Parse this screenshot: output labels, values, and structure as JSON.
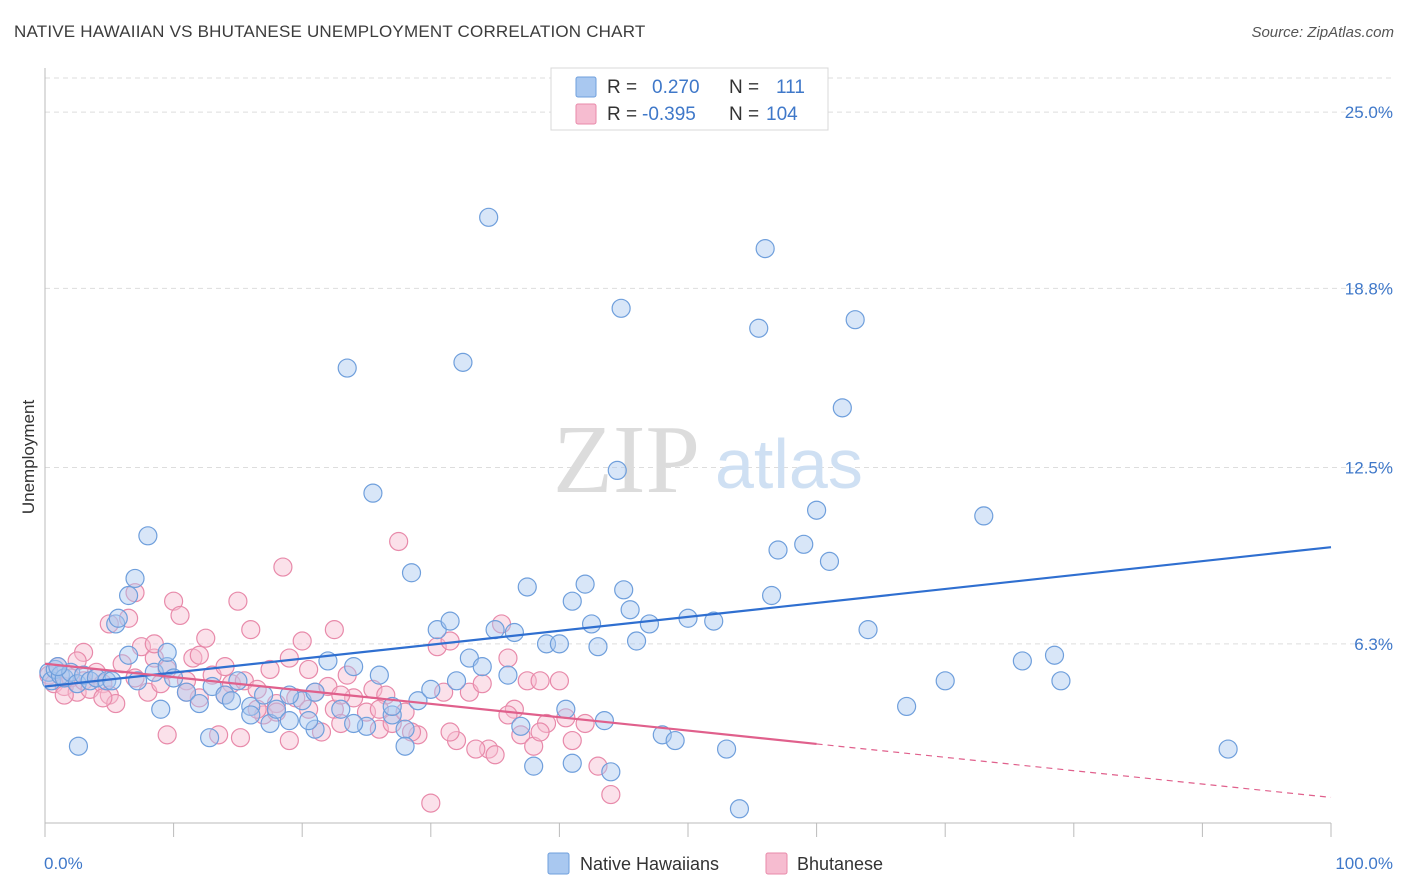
{
  "title": "NATIVE HAWAIIAN VS BHUTANESE UNEMPLOYMENT CORRELATION CHART",
  "source": "Source: ZipAtlas.com",
  "watermark": {
    "zip": "ZIP",
    "atlas": "atlas"
  },
  "colors": {
    "blue_fill": "#a9c8f0",
    "blue_stroke": "#6f9fdc",
    "blue_line": "#2f6fd0",
    "pink_fill": "#f6bcd0",
    "pink_stroke": "#e88aaa",
    "pink_line": "#e0608c",
    "tick_text": "#3f78c9",
    "grid": "#dddddd"
  },
  "legend": {
    "rows": [
      {
        "r_label": "R =",
        "r_value": "0.270",
        "n_label": "N =",
        "n_value": "111"
      },
      {
        "r_label": "R =",
        "r_value": "-0.395",
        "n_label": "N =",
        "n_value": "104"
      }
    ]
  },
  "bottom_legend": [
    "Native Hawaiians",
    "Bhutanese"
  ],
  "chart_data": {
    "type": "scatter",
    "title": "NATIVE HAWAIIAN VS BHUTANESE UNEMPLOYMENT CORRELATION CHART",
    "xlabel": "",
    "ylabel": "Unemployment",
    "xlim": [
      0,
      100
    ],
    "ylim": [
      0,
      26.2
    ],
    "x_tick_labels": [
      "0.0%",
      "100.0%"
    ],
    "y_ticks": [
      6.3,
      12.5,
      18.8,
      25.0
    ],
    "y_tick_labels": [
      "6.3%",
      "12.5%",
      "18.8%",
      "25.0%"
    ],
    "grid": true,
    "legend_position": "top-center",
    "series": [
      {
        "name": "Native Hawaiians",
        "r": 0.27,
        "n": 111,
        "trend": {
          "x": [
            0,
            100
          ],
          "y": [
            4.8,
            9.7
          ],
          "dashed_from": null
        },
        "points": [
          [
            0.3,
            5.3
          ],
          [
            0.5,
            5.0
          ],
          [
            0.8,
            5.4
          ],
          [
            1.2,
            5.2
          ],
          [
            1.5,
            5.1
          ],
          [
            2,
            5.3
          ],
          [
            2.5,
            4.9
          ],
          [
            3,
            5.2
          ],
          [
            3.5,
            5.0
          ],
          [
            4,
            5.1
          ],
          [
            4.8,
            5.0
          ],
          [
            5.5,
            7.0
          ],
          [
            6.5,
            5.9
          ],
          [
            5.2,
            5.0
          ],
          [
            7.2,
            5.0
          ],
          [
            8.5,
            5.3
          ],
          [
            9.5,
            5.5
          ],
          [
            10,
            5.1
          ],
          [
            11,
            4.6
          ],
          [
            12,
            4.2
          ],
          [
            13,
            4.8
          ],
          [
            14,
            4.5
          ],
          [
            15,
            5.0
          ],
          [
            16,
            4.1
          ],
          [
            17,
            4.5
          ],
          [
            17.5,
            3.5
          ],
          [
            18,
            4.0
          ],
          [
            19,
            3.6
          ],
          [
            20,
            4.3
          ],
          [
            21,
            4.6
          ],
          [
            22,
            5.7
          ],
          [
            23,
            4.0
          ],
          [
            24,
            5.5
          ],
          [
            25,
            3.4
          ],
          [
            26,
            5.2
          ],
          [
            27,
            3.8
          ],
          [
            28,
            3.3
          ],
          [
            29,
            4.3
          ],
          [
            30,
            4.7
          ],
          [
            8,
            10.1
          ],
          [
            7,
            8.6
          ],
          [
            5.7,
            7.2
          ],
          [
            6.5,
            8.0
          ],
          [
            2.6,
            2.7
          ],
          [
            9,
            4.0
          ],
          [
            12.8,
            3.0
          ],
          [
            16,
            3.8
          ],
          [
            19,
            4.5
          ],
          [
            21,
            3.3
          ],
          [
            23.5,
            16.0
          ],
          [
            24,
            3.5
          ],
          [
            25.5,
            11.6
          ],
          [
            27,
            4.1
          ],
          [
            28,
            2.7
          ],
          [
            28.5,
            8.8
          ],
          [
            30.5,
            6.8
          ],
          [
            31.5,
            7.1
          ],
          [
            32,
            5.0
          ],
          [
            32.5,
            16.2
          ],
          [
            33,
            5.8
          ],
          [
            34,
            5.5
          ],
          [
            34.5,
            21.3
          ],
          [
            35,
            6.8
          ],
          [
            36,
            5.2
          ],
          [
            37,
            3.4
          ],
          [
            37.5,
            8.3
          ],
          [
            38,
            2.0
          ],
          [
            39,
            6.3
          ],
          [
            40,
            6.3
          ],
          [
            40.5,
            4.0
          ],
          [
            41,
            2.1
          ],
          [
            42,
            8.4
          ],
          [
            42.5,
            7.0
          ],
          [
            43,
            6.2
          ],
          [
            43.5,
            3.6
          ],
          [
            44,
            1.8
          ],
          [
            44.5,
            12.4
          ],
          [
            44.8,
            18.1
          ],
          [
            45,
            8.2
          ],
          [
            45.5,
            7.5
          ],
          [
            46,
            6.4
          ],
          [
            47,
            7.0
          ],
          [
            48,
            3.1
          ],
          [
            49,
            2.9
          ],
          [
            50,
            7.2
          ],
          [
            52,
            7.1
          ],
          [
            53,
            2.6
          ],
          [
            54,
            0.5
          ],
          [
            55.5,
            17.4
          ],
          [
            56,
            20.2
          ],
          [
            56.5,
            8.0
          ],
          [
            57,
            9.6
          ],
          [
            59,
            9.8
          ],
          [
            60,
            11.0
          ],
          [
            61,
            9.2
          ],
          [
            62,
            14.6
          ],
          [
            63,
            17.7
          ],
          [
            64,
            6.8
          ],
          [
            67,
            4.1
          ],
          [
            70,
            5.0
          ],
          [
            73,
            10.8
          ],
          [
            76,
            5.7
          ],
          [
            78.5,
            5.9
          ],
          [
            79,
            5.0
          ],
          [
            92,
            2.6
          ],
          [
            41,
            7.8
          ],
          [
            36.5,
            6.7
          ],
          [
            20.5,
            3.6
          ],
          [
            14.5,
            4.3
          ],
          [
            9.5,
            6.0
          ],
          [
            1,
            5.5
          ]
        ]
      },
      {
        "name": "Bhutanese",
        "r": -0.395,
        "n": 104,
        "trend": {
          "x": [
            0,
            100
          ],
          "y": [
            5.6,
            0.9
          ],
          "dashed_from": 60
        },
        "points": [
          [
            0.3,
            5.2
          ],
          [
            0.7,
            4.9
          ],
          [
            1,
            5.5
          ],
          [
            1.5,
            4.8
          ],
          [
            2,
            5.1
          ],
          [
            2.5,
            4.6
          ],
          [
            3,
            5.0
          ],
          [
            3.5,
            4.7
          ],
          [
            4,
            5.3
          ],
          [
            4.5,
            4.9
          ],
          [
            5,
            4.5
          ],
          [
            5.5,
            4.2
          ],
          [
            6,
            5.6
          ],
          [
            6.5,
            7.2
          ],
          [
            7,
            5.1
          ],
          [
            7.5,
            6.2
          ],
          [
            8,
            4.6
          ],
          [
            8.5,
            5.8
          ],
          [
            9,
            4.9
          ],
          [
            9.5,
            5.4
          ],
          [
            10,
            7.8
          ],
          [
            10.5,
            7.3
          ],
          [
            11,
            5.0
          ],
          [
            11.5,
            5.8
          ],
          [
            12,
            4.4
          ],
          [
            12.5,
            6.5
          ],
          [
            13,
            5.2
          ],
          [
            13.5,
            3.1
          ],
          [
            14,
            5.5
          ],
          [
            14.5,
            4.9
          ],
          [
            15,
            7.8
          ],
          [
            15.5,
            5.0
          ],
          [
            16,
            6.8
          ],
          [
            16.5,
            4.7
          ],
          [
            17,
            3.8
          ],
          [
            17.5,
            5.4
          ],
          [
            18,
            4.2
          ],
          [
            18.5,
            9.0
          ],
          [
            19,
            5.8
          ],
          [
            19.5,
            4.4
          ],
          [
            20,
            6.4
          ],
          [
            20.5,
            5.4
          ],
          [
            21,
            4.6
          ],
          [
            21.5,
            3.2
          ],
          [
            22,
            4.8
          ],
          [
            22.5,
            4.0
          ],
          [
            23,
            3.5
          ],
          [
            23.5,
            5.2
          ],
          [
            24,
            4.4
          ],
          [
            25,
            3.9
          ],
          [
            25.5,
            4.7
          ],
          [
            26,
            3.3
          ],
          [
            26.5,
            4.5
          ],
          [
            27,
            3.5
          ],
          [
            27.5,
            9.9
          ],
          [
            28,
            3.9
          ],
          [
            29,
            3.1
          ],
          [
            30,
            0.7
          ],
          [
            30.5,
            6.2
          ],
          [
            31,
            4.6
          ],
          [
            31.5,
            6.4
          ],
          [
            32,
            2.9
          ],
          [
            33,
            4.6
          ],
          [
            34,
            4.9
          ],
          [
            34.5,
            2.6
          ],
          [
            35,
            2.4
          ],
          [
            35.5,
            7.0
          ],
          [
            36,
            5.8
          ],
          [
            36.5,
            4.0
          ],
          [
            37,
            3.1
          ],
          [
            37.5,
            5.0
          ],
          [
            38,
            2.7
          ],
          [
            38.5,
            5.0
          ],
          [
            39,
            3.5
          ],
          [
            40,
            5.0
          ],
          [
            40.5,
            3.7
          ],
          [
            41,
            2.9
          ],
          [
            42,
            3.5
          ],
          [
            43,
            2.0
          ],
          [
            44,
            1.0
          ],
          [
            3,
            6.0
          ],
          [
            5,
            7.0
          ],
          [
            8.5,
            6.3
          ],
          [
            12,
            5.9
          ],
          [
            16.5,
            4.0
          ],
          [
            19,
            2.9
          ],
          [
            22.5,
            6.8
          ],
          [
            26,
            4.0
          ],
          [
            1.5,
            4.5
          ],
          [
            2.5,
            5.7
          ],
          [
            4.5,
            4.4
          ],
          [
            7,
            8.1
          ],
          [
            11,
            4.6
          ],
          [
            14,
            4.5
          ],
          [
            18,
            3.9
          ],
          [
            23,
            4.5
          ],
          [
            28.5,
            3.2
          ],
          [
            31.5,
            3.2
          ],
          [
            33.5,
            2.6
          ],
          [
            36,
            3.8
          ],
          [
            38.5,
            3.2
          ],
          [
            9.5,
            3.1
          ],
          [
            15.2,
            3.0
          ],
          [
            20.5,
            4.0
          ]
        ]
      }
    ]
  }
}
